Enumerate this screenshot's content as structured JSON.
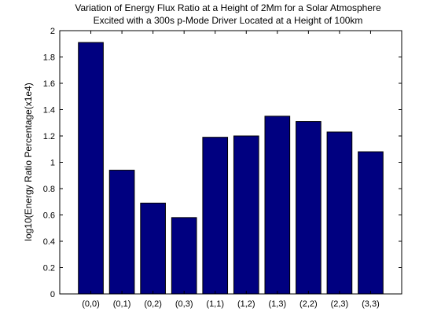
{
  "chart_data": {
    "type": "bar",
    "title": [
      "Variation of Energy Flux Ratio at a Height of 2Mm for a Solar Atmosphere",
      "Excited with a 300s p-Mode Driver Located at a Height of 100km"
    ],
    "xlabel": "",
    "ylabel": "log10(Energy Ratio Percentage(x1e4)",
    "categories": [
      "(0,0)",
      "(0,1)",
      "(0,2)",
      "(0,3)",
      "(1,1)",
      "(1,2)",
      "(1,3)",
      "(2,2)",
      "(2,3)",
      "(3,3)"
    ],
    "values": [
      1.91,
      0.94,
      0.69,
      0.58,
      1.19,
      1.2,
      1.35,
      1.31,
      1.23,
      1.08
    ],
    "ylim": [
      0,
      2
    ],
    "yticks": [
      "0",
      "0.2",
      "0.4",
      "0.6",
      "0.8",
      "1",
      "1.2",
      "1.4",
      "1.6",
      "1.8",
      "2"
    ],
    "xlim": [
      0,
      11
    ],
    "bar_color": "#000080",
    "grid": false
  }
}
